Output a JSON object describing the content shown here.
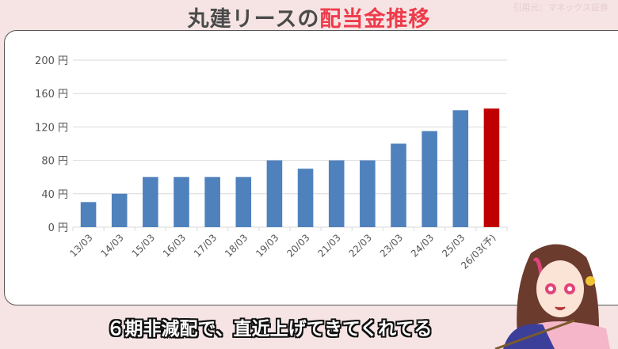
{
  "header": {
    "title_plain": "丸建リースの",
    "title_highlight": "配当金推移",
    "source": "引用元：マネックス証券"
  },
  "caption": "６期非減配で、直近上げてきてくれてる",
  "colors": {
    "bar": "#4f81bd",
    "forecast_bar": "#c00000",
    "title_highlight": "#ee3b4b"
  },
  "chart_data": {
    "type": "bar",
    "categories": [
      "13/03",
      "14/03",
      "15/03",
      "16/03",
      "17/03",
      "18/03",
      "19/03",
      "20/03",
      "21/03",
      "22/03",
      "23/03",
      "24/03",
      "25/03",
      "26/03(予)"
    ],
    "values": [
      30,
      40,
      60,
      60,
      60,
      60,
      80,
      70,
      80,
      80,
      100,
      115,
      140,
      142
    ],
    "forecast_index": 13,
    "ylim": [
      0,
      200
    ],
    "yticks": [
      0,
      40,
      80,
      120,
      160,
      200
    ],
    "ytick_suffix": " 円",
    "grid": true
  }
}
